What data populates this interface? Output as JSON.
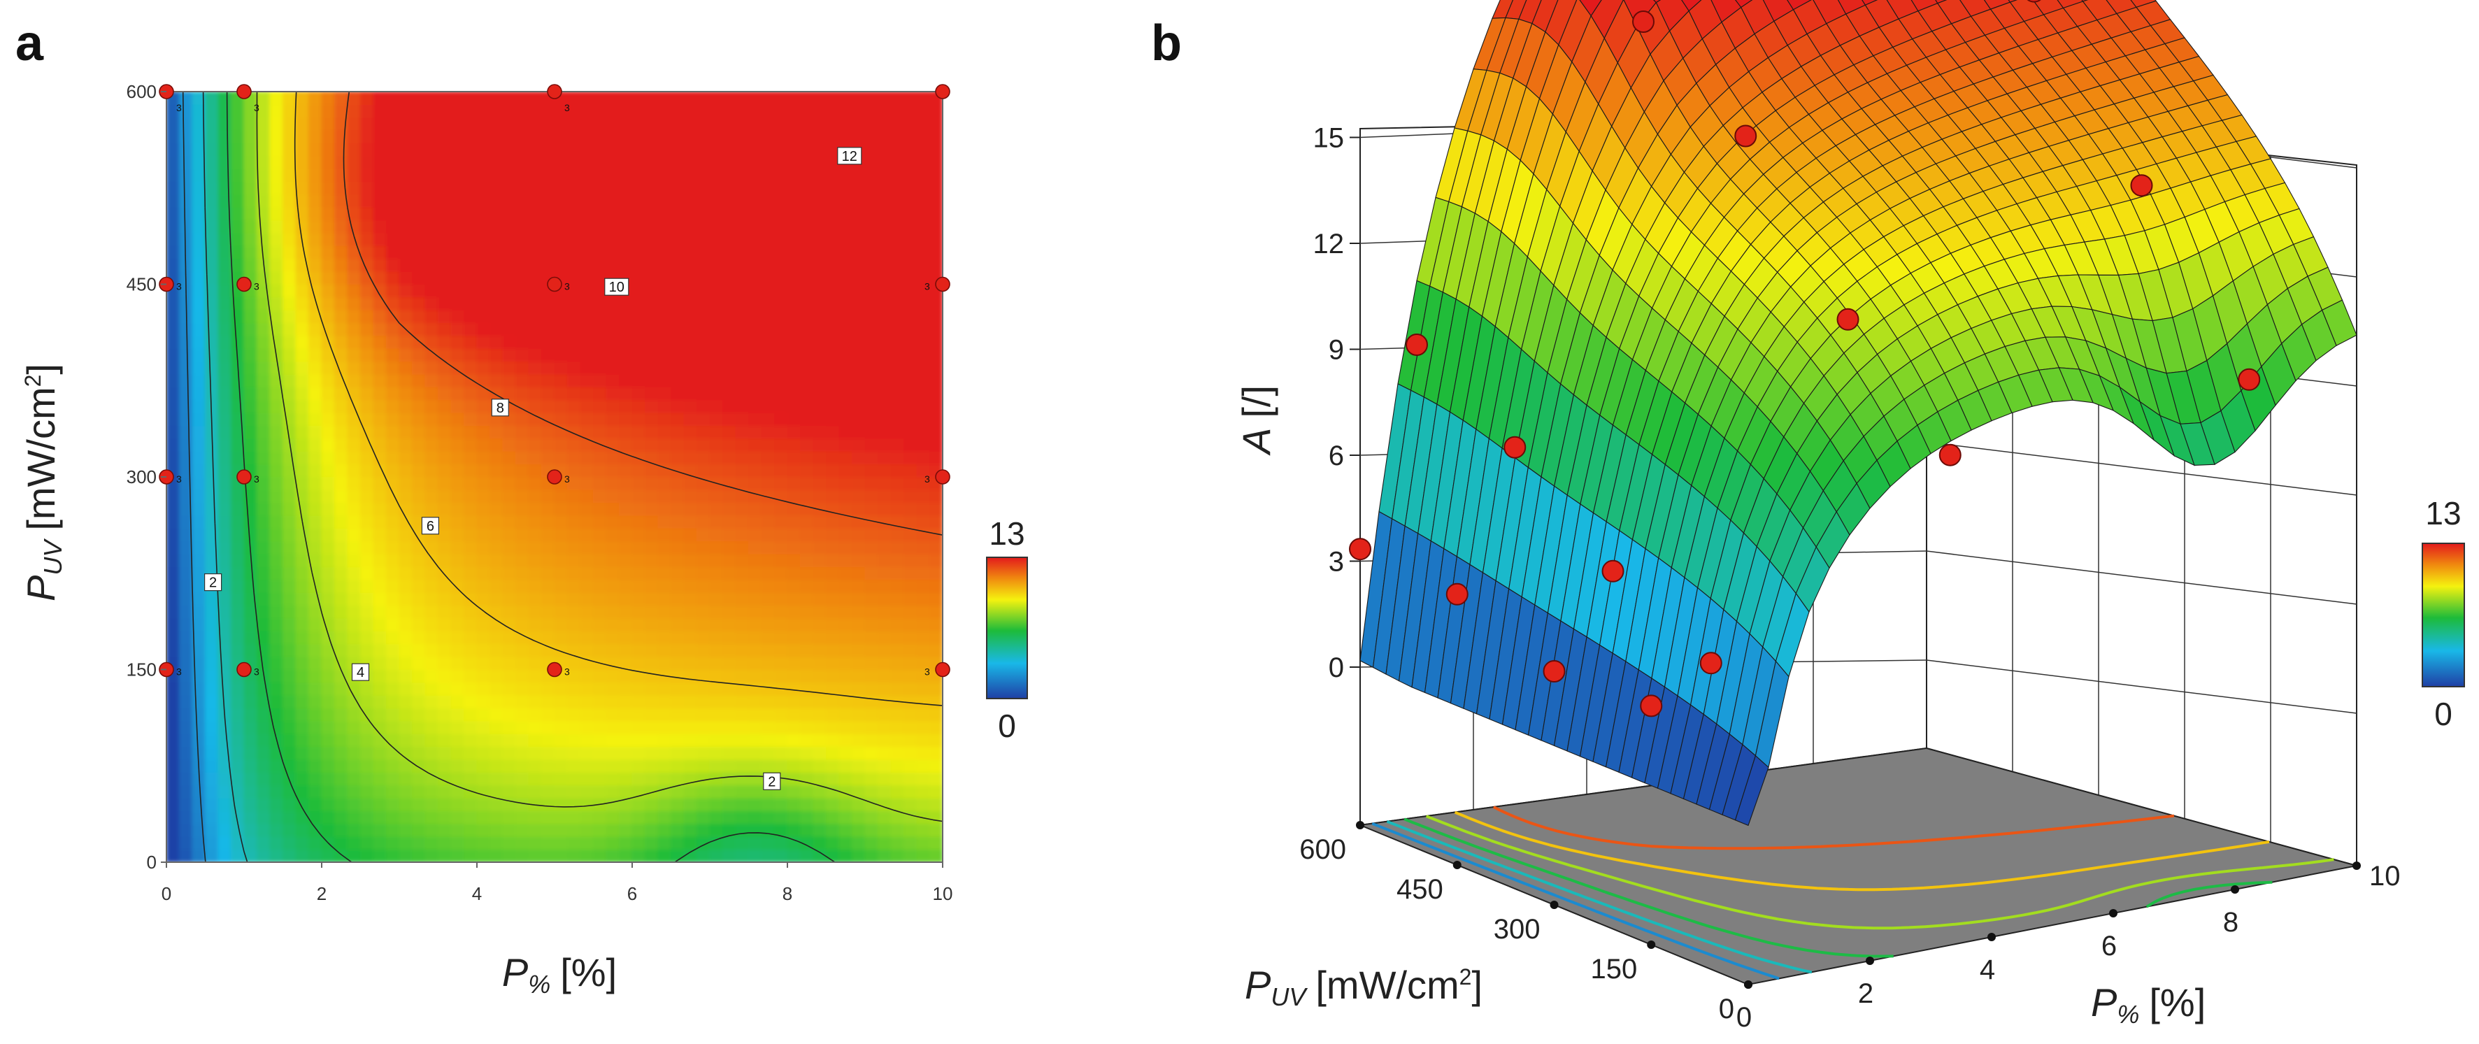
{
  "panels": {
    "a_letter": "a",
    "b_letter": "b"
  },
  "chart_data": [
    {
      "type": "heatmap",
      "panel": "a",
      "xlabel_main": "P",
      "xlabel_sub": "%",
      "xlabel_unit": "[%]",
      "ylabel_main": "P",
      "ylabel_sub": "UV",
      "ylabel_unit": "[mW/cm",
      "ylabel_sup": "2",
      "ylabel_close": "]",
      "xlim": [
        0,
        10
      ],
      "ylim": [
        0,
        600
      ],
      "x_ticks": [
        "0",
        "2",
        "4",
        "6",
        "8",
        "10"
      ],
      "y_ticks": [
        "0",
        "150",
        "300",
        "450",
        "600"
      ],
      "colorbar": {
        "min": "0",
        "max": "13"
      },
      "colors": [
        "#1f3fa5",
        "#19b8e8",
        "#1dbb3a",
        "#f5f20f",
        "#f08a0f",
        "#e31a1c"
      ],
      "contour_labels": [
        {
          "text": "2",
          "x": 0.6,
          "y": 218
        },
        {
          "text": "2",
          "x": 7.8,
          "y": 63
        },
        {
          "text": "4",
          "x": 2.5,
          "y": 148
        },
        {
          "text": "6",
          "x": 3.4,
          "y": 262
        },
        {
          "text": "8",
          "x": 4.3,
          "y": 354
        },
        {
          "text": "10",
          "x": 5.8,
          "y": 448
        },
        {
          "text": "12",
          "x": 8.8,
          "y": 550
        }
      ],
      "design_points": [
        {
          "x": 0,
          "y": 600,
          "n": "3"
        },
        {
          "x": 1,
          "y": 600,
          "n": "3"
        },
        {
          "x": 5,
          "y": 600,
          "n": "3"
        },
        {
          "x": 10,
          "y": 600,
          "n": ""
        },
        {
          "x": 0,
          "y": 450,
          "n": "3"
        },
        {
          "x": 1,
          "y": 450,
          "n": "3"
        },
        {
          "x": 5,
          "y": 450,
          "n": "3"
        },
        {
          "x": 10,
          "y": 450,
          "n": "3"
        },
        {
          "x": 0,
          "y": 300,
          "n": "3"
        },
        {
          "x": 1,
          "y": 300,
          "n": "3"
        },
        {
          "x": 5,
          "y": 300,
          "n": "3"
        },
        {
          "x": 10,
          "y": 300,
          "n": "3"
        },
        {
          "x": 0,
          "y": 150,
          "n": "3"
        },
        {
          "x": 1,
          "y": 150,
          "n": "3"
        },
        {
          "x": 5,
          "y": 150,
          "n": "3"
        },
        {
          "x": 10,
          "y": 150,
          "n": "3"
        }
      ]
    },
    {
      "type": "surface3d",
      "panel": "b",
      "zlabel_main": "A",
      "zlabel_unit": "[/]",
      "xlabel_main": "P",
      "xlabel_sub": "%",
      "xlabel_unit": "[%]",
      "ylabel_main": "P",
      "ylabel_sub": "UV",
      "ylabel_unit": "[mW/cm",
      "ylabel_sup": "2",
      "ylabel_close": "]",
      "x_ticks": [
        "0",
        "2",
        "4",
        "6",
        "8",
        "10"
      ],
      "y_ticks": [
        "0",
        "150",
        "300",
        "450",
        "600"
      ],
      "z_ticks": [
        "0",
        "3",
        "6",
        "9",
        "12",
        "15"
      ],
      "xlim": [
        0,
        10
      ],
      "ylim": [
        0,
        600
      ],
      "zlim": [
        0,
        15
      ],
      "colorbar": {
        "min": "0",
        "max": "13"
      },
      "design_points": [
        {
          "x": 0,
          "y": 600,
          "z": 2.3
        },
        {
          "x": 1,
          "y": 600,
          "z": 6.0
        },
        {
          "x": 5,
          "y": 600,
          "z": 11.5
        },
        {
          "x": 10,
          "y": 600,
          "z": 13.4
        },
        {
          "x": 0,
          "y": 450,
          "z": 2.2
        },
        {
          "x": 1,
          "y": 450,
          "z": 4.8
        },
        {
          "x": 5,
          "y": 450,
          "z": 10.0
        },
        {
          "x": 10,
          "y": 450,
          "z": 11.9
        },
        {
          "x": 0,
          "y": 300,
          "z": 1.5
        },
        {
          "x": 1,
          "y": 300,
          "z": 3.2
        },
        {
          "x": 5,
          "y": 300,
          "z": 7.2
        },
        {
          "x": 10,
          "y": 300,
          "z": 8.8
        },
        {
          "x": 0,
          "y": 150,
          "z": 1.6
        },
        {
          "x": 1,
          "y": 150,
          "z": 2.2
        },
        {
          "x": 5,
          "y": 150,
          "z": 5.3
        },
        {
          "x": 10,
          "y": 150,
          "z": 5.7
        }
      ]
    }
  ]
}
